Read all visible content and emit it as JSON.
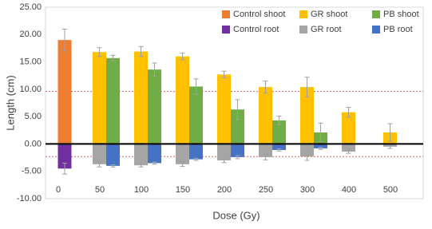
{
  "chart_data": {
    "type": "bar",
    "x_label": "Dose (Gy)",
    "y_label": "Length (cm)",
    "categories": [
      "0",
      "50",
      "100",
      "150",
      "200",
      "250",
      "300",
      "400",
      "500"
    ],
    "ylim": [
      -10,
      25
    ],
    "yticks": [
      {
        "value": -10,
        "label": "-10.00"
      },
      {
        "value": -5,
        "label": "-5.00"
      },
      {
        "value": 0,
        "label": "0.00"
      },
      {
        "value": 5,
        "label": "5.00"
      },
      {
        "value": 10,
        "label": "10.00"
      },
      {
        "value": 15,
        "label": "15.00"
      },
      {
        "value": 20,
        "label": "20.00"
      },
      {
        "value": 25,
        "label": "25.00"
      }
    ],
    "grid": false,
    "legend": "top-right",
    "reference_lines": [
      9.6,
      -2.3
    ],
    "reference_color": "#e06060",
    "series": [
      {
        "name": "Control shoot",
        "color": "#ED7D31",
        "slot": "center",
        "values": [
          19.0,
          null,
          null,
          null,
          null,
          null,
          null,
          null,
          null
        ],
        "errors": [
          2.0,
          null,
          null,
          null,
          null,
          null,
          null,
          null,
          null
        ]
      },
      {
        "name": "GR shoot",
        "color": "#FFC000",
        "slot": "left",
        "values": [
          null,
          16.8,
          16.9,
          16.0,
          12.7,
          10.4,
          10.4,
          5.8,
          2.1
        ],
        "errors": [
          null,
          0.8,
          0.9,
          0.6,
          0.6,
          1.1,
          1.8,
          0.9,
          1.6
        ]
      },
      {
        "name": "PB shoot",
        "color": "#70AD47",
        "slot": "right",
        "values": [
          null,
          15.7,
          13.6,
          10.5,
          6.3,
          4.3,
          2.1,
          null,
          null
        ],
        "errors": [
          null,
          0.5,
          1.2,
          1.4,
          1.8,
          0.8,
          1.7,
          null,
          null
        ]
      },
      {
        "name": "Control root",
        "color": "#7030A0",
        "slot": "center",
        "values": [
          -4.5,
          null,
          null,
          null,
          null,
          null,
          null,
          null,
          null
        ],
        "errors": [
          1.0,
          null,
          null,
          null,
          null,
          null,
          null,
          null,
          null
        ]
      },
      {
        "name": "GR root",
        "color": "#A5A5A5",
        "slot": "left",
        "values": [
          null,
          -3.7,
          -3.9,
          -3.7,
          -3.0,
          -2.4,
          -2.3,
          -1.4,
          -0.5
        ],
        "errors": [
          null,
          0.5,
          0.3,
          0.4,
          0.4,
          0.5,
          0.7,
          0.3,
          0.3
        ]
      },
      {
        "name": "PB root",
        "color": "#4472C4",
        "slot": "right",
        "values": [
          null,
          -4.0,
          -3.5,
          -2.8,
          -2.4,
          -1.1,
          -0.8,
          null,
          null
        ],
        "errors": [
          null,
          0.2,
          0.2,
          0.2,
          0.3,
          0.2,
          0.2,
          null,
          null
        ]
      }
    ]
  }
}
